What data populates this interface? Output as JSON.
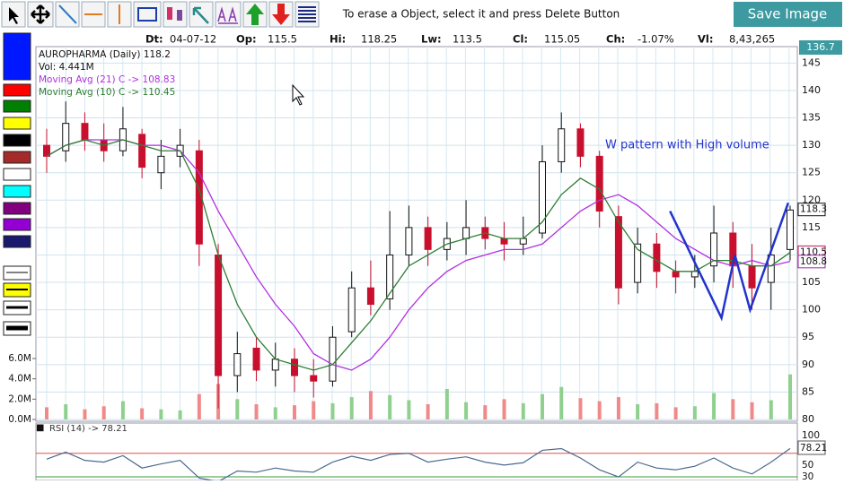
{
  "toolbar": {
    "hint": "To erase a Object, select it and press Delete Button",
    "button": "Save Image"
  },
  "info": [
    {
      "label": "Dt:",
      "value": "04-07-12"
    },
    {
      "label": "Op:",
      "value": "115.5"
    },
    {
      "label": "Hi:",
      "value": "118.25"
    },
    {
      "label": "Lw:",
      "value": "113.5"
    },
    {
      "label": "Cl:",
      "value": "115.05"
    },
    {
      "label": "Ch:",
      "value": "-1.07%"
    },
    {
      "label": "Vl:",
      "value": "8,43,265"
    }
  ],
  "top_tag": "136.7",
  "chart_data": {
    "type": "candlestick",
    "legend": [
      "AUROPHARMA (Daily) 118.2",
      "Vol: 4.441M",
      "Moving Avg (21) C -> 108.83",
      "Moving Avg (10) C -> 110.45"
    ],
    "annotation": "W pattern with High volume",
    "ylim": [
      80,
      148
    ],
    "yticks": [
      80,
      85,
      90,
      95,
      100,
      105,
      110,
      115,
      120,
      125,
      130,
      135,
      140,
      145
    ],
    "tags": [
      {
        "value": 118.3,
        "label": "118.3",
        "color": "#111"
      },
      {
        "value": 110.5,
        "label": "110.5",
        "color": "#c2185b"
      },
      {
        "value": 108.8,
        "label": "108.8",
        "color": "#9c27b0"
      }
    ],
    "open": [
      130,
      129,
      134,
      131,
      129,
      132,
      125,
      128,
      129,
      110,
      88,
      93,
      89,
      91,
      88,
      87,
      96,
      104,
      102,
      110,
      115,
      111,
      113,
      115,
      113,
      112,
      114,
      127,
      133,
      128,
      117,
      105,
      112,
      107,
      106,
      108,
      114,
      108,
      105,
      111
    ],
    "high": [
      133,
      138,
      136,
      134,
      137,
      133,
      131,
      133,
      131,
      112,
      96,
      95,
      94,
      93,
      91,
      97,
      107,
      109,
      118,
      119,
      117,
      116,
      120,
      117,
      116,
      117,
      130,
      136,
      134,
      129,
      119,
      115,
      114,
      109,
      110,
      119,
      116,
      112,
      115,
      119
    ],
    "low": [
      125,
      127,
      129,
      127,
      128,
      124,
      122,
      126,
      108,
      82,
      85,
      87,
      86,
      85,
      84,
      86,
      95,
      99,
      100,
      108,
      108,
      109,
      110,
      111,
      109,
      110,
      113,
      125,
      126,
      115,
      101,
      103,
      104,
      103,
      104,
      105,
      104,
      100,
      100,
      109
    ],
    "close": [
      128,
      134,
      131,
      129,
      133,
      126,
      128,
      130,
      112,
      88,
      92,
      89,
      91,
      88,
      87,
      95,
      104,
      101,
      110,
      115,
      111,
      113,
      115,
      113,
      112,
      113,
      127,
      133,
      128,
      118,
      104,
      112,
      107,
      106,
      107,
      114,
      108,
      104,
      110,
      118.2
    ],
    "series": [
      {
        "name": "Moving Avg (21)",
        "color": "#b030e0",
        "values": [
          128,
          130,
          131,
          131,
          131,
          130,
          130,
          129,
          125,
          118,
          112,
          106,
          101,
          97,
          92,
          90,
          89,
          91,
          95,
          100,
          104,
          107,
          109,
          110,
          111,
          111,
          112,
          115,
          118,
          120,
          121,
          119,
          116,
          113,
          111,
          109,
          108,
          109,
          108,
          108.83
        ]
      },
      {
        "name": "Moving Avg (10)",
        "color": "#2e7d32",
        "values": [
          128,
          130,
          131,
          130,
          131,
          130,
          129,
          129,
          122,
          110,
          101,
          95,
          91,
          90,
          89,
          90,
          94,
          98,
          103,
          108,
          110,
          112,
          113,
          114,
          113,
          113,
          116,
          121,
          124,
          122,
          116,
          111,
          109,
          107,
          107,
          109,
          109,
          108,
          108,
          110.45
        ]
      }
    ],
    "trendline": {
      "color": "#2233cc",
      "x": [
        32.7,
        35.4,
        36.1,
        36.9,
        38.9
      ],
      "y": [
        118,
        98.5,
        110,
        100,
        119.5
      ]
    },
    "volume": {
      "ylim": [
        0,
        6
      ],
      "yticks": [
        {
          "value": 0,
          "label": "0.0M"
        },
        {
          "value": 2,
          "label": "2.0M"
        },
        {
          "value": 4,
          "label": "4.0M"
        },
        {
          "value": 6,
          "label": "6.0M"
        }
      ],
      "values": [
        1.2,
        1.5,
        1.0,
        1.3,
        1.8,
        1.1,
        1.0,
        0.9,
        2.5,
        3.5,
        2.0,
        1.5,
        1.2,
        1.4,
        1.8,
        1.6,
        2.2,
        2.8,
        2.4,
        1.9,
        1.5,
        3.0,
        1.7,
        1.4,
        2.0,
        1.6,
        2.5,
        3.2,
        2.1,
        1.8,
        2.2,
        1.5,
        1.6,
        1.2,
        1.3,
        2.6,
        2.0,
        1.7,
        1.9,
        4.441
      ]
    },
    "rsi": {
      "label": "RSI (14) -> 78.21",
      "ylim": [
        24,
        100
      ],
      "yticks": [
        30,
        50,
        100
      ],
      "levels": [
        70,
        30
      ],
      "tag": "78.21",
      "values": [
        60,
        72,
        58,
        55,
        66,
        45,
        52,
        58,
        28,
        22,
        40,
        38,
        45,
        40,
        38,
        55,
        65,
        58,
        68,
        70,
        55,
        60,
        64,
        55,
        50,
        54,
        75,
        78,
        62,
        42,
        30,
        55,
        45,
        42,
        48,
        62,
        45,
        35,
        55,
        78.21
      ]
    }
  }
}
